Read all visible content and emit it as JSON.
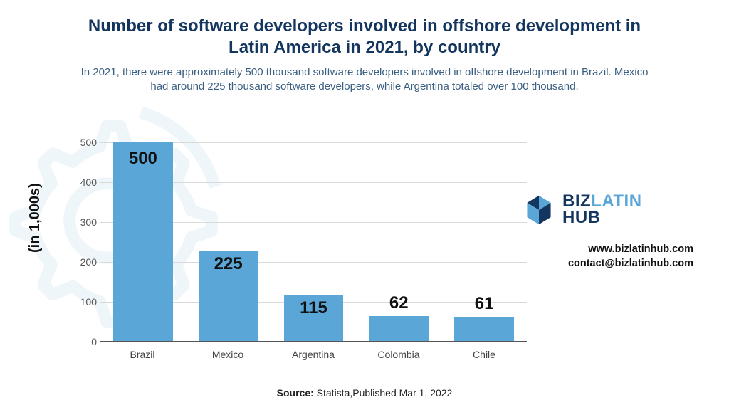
{
  "title": {
    "text": "Number of software developers involved in offshore development in Latin America in 2021, by country",
    "color": "#14365e",
    "fontsize": 24
  },
  "subtitle": {
    "text": "In 2021, there were approximately 500 thousand software developers involved in offshore development in Brazil. Mexico had around 225 thousand software developers, while Argentina totaled over 100 thousand.",
    "color": "#3a5f82",
    "fontsize": 15
  },
  "ylabel": {
    "text": "(in 1,000s)",
    "fontsize": 20,
    "color": "#111111"
  },
  "chart": {
    "type": "bar",
    "categories": [
      "Brazil",
      "Mexico",
      "Argentina",
      "Colombia",
      "Chile"
    ],
    "values": [
      500,
      225,
      115,
      62,
      61
    ],
    "bar_color": "#5aa6d6",
    "value_label_fontsize": 24,
    "ylim": [
      0,
      500
    ],
    "ytick_step": 100,
    "grid_color": "#d9d9d9",
    "axis_color": "#555555",
    "xlabel_fontsize": 14,
    "ytick_fontsize": 14,
    "background_color": "#ffffff"
  },
  "source": {
    "label": "Source:",
    "text": "Statista,Published Mar 1, 2022"
  },
  "brand": {
    "biz": "BIZ",
    "latin": "LATIN",
    "hub": "HUB",
    "biz_color": "#14365e",
    "latin_color": "#5aa6d6",
    "hub_color": "#14365e",
    "fontsize": 24,
    "logo_color_a": "#14365e",
    "logo_color_b": "#5aa6d6"
  },
  "contact": {
    "site": "www.bizlatinhub.com",
    "email": "contact@bizlatinhub.com"
  },
  "decoration": {
    "stroke": "#cfe6f3"
  }
}
